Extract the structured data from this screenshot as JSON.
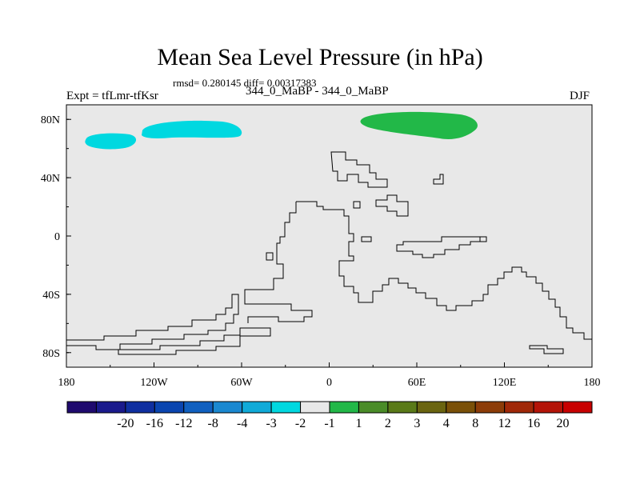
{
  "title": "Mean Sea Level Pressure (in hPa)",
  "stats": "rmsd= 0.280145 diff= 0.00317383",
  "left_label": "Expt = tfLmr-tfKsr",
  "center_label": "344_0_MaBP - 344_0_MaBP",
  "right_label": "DJF",
  "map": {
    "lon_ticks": [
      "180",
      "120W",
      "60W",
      "0",
      "60E",
      "120E",
      "180"
    ],
    "lat_ticks": [
      "80N",
      "40N",
      "0",
      "40S",
      "80S"
    ],
    "background_color": "#e8e8e8",
    "anomaly_regions": [
      {
        "name": "negative-anomaly-north-pacific-west",
        "level": "-2 to -1",
        "color": "#00d8e0"
      },
      {
        "name": "negative-anomaly-north-pacific-east",
        "level": "-2 to -1",
        "color": "#00d8e0"
      },
      {
        "name": "positive-anomaly-arctic-eurasia",
        "level": "1 to 2",
        "color": "#22b848"
      }
    ]
  },
  "colorbar": {
    "colors": [
      "#1f0a6e",
      "#1a1a8c",
      "#0f2fa0",
      "#0a45b0",
      "#1060c0",
      "#1a88d0",
      "#10aad8",
      "#00d8e0",
      "#e8e8e8",
      "#22b848",
      "#4a8c28",
      "#5a7a18",
      "#6a6410",
      "#7a5008",
      "#8c3c08",
      "#a02808",
      "#b41408",
      "#c80000"
    ],
    "labels": [
      "-20",
      "-16",
      "-12",
      "-8",
      "-4",
      "-3",
      "-2",
      "-1",
      "1",
      "2",
      "3",
      "4",
      "8",
      "12",
      "16",
      "20"
    ]
  }
}
